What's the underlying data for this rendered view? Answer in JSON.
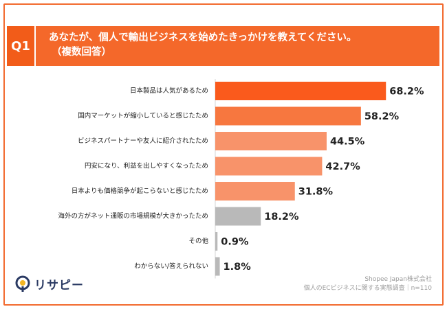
{
  "question": {
    "badge": "Q1",
    "title": "あなたが、個人で輸出ビジネスを始めたきっかけを教えてください。",
    "subtitle": "（複数回答）"
  },
  "chart_data": {
    "type": "bar",
    "orientation": "horizontal",
    "categories": [
      "日本製品は人気があるため",
      "国内マーケットが縮小していると感じたため",
      "ビジネスパートナーや友人に紹介されたため",
      "円安になり、利益を出しやすくなったため",
      "日本よりも価格競争が起こらないと感じたため",
      "海外の方がネット通販の市場規模が大きかったため",
      "その他",
      "わからない/答えられない"
    ],
    "values": [
      68.2,
      58.2,
      44.5,
      42.7,
      31.8,
      18.2,
      0.9,
      1.8
    ],
    "value_labels": [
      "68.2%",
      "58.2%",
      "44.5%",
      "42.7%",
      "31.8%",
      "18.2%",
      "0.9%",
      "1.8%"
    ],
    "colors": [
      "#fa5a1c",
      "#f7773f",
      "#f8936a",
      "#f8936a",
      "#f8936a",
      "#b9b9b9",
      "#b9b9b9",
      "#b9b9b9"
    ],
    "xlim": [
      0,
      80
    ],
    "unit": "%",
    "grid": false,
    "legend": "none"
  },
  "footer": {
    "logo_text": "リサピー",
    "company": "Shopee Japan株式会社",
    "survey": "個人のECビジネスに関する実態調査｜n=110"
  },
  "colors": {
    "accent": "#f4682a",
    "accent_dark": "#f25c19",
    "logo_navy": "#2a3a63"
  }
}
